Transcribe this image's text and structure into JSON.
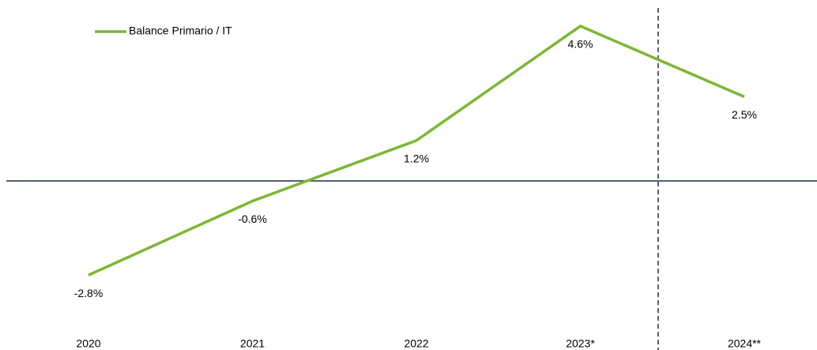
{
  "chart_data": {
    "type": "line",
    "categories": [
      "2020",
      "2021",
      "2022",
      "2023*",
      "2024**"
    ],
    "series": [
      {
        "name": "Balance Primario / IT",
        "color": "#7cb733",
        "values": [
          -2.8,
          -0.6,
          1.2,
          4.6,
          2.5
        ],
        "value_labels": [
          "-2.8%",
          "-0.6%",
          "1.2%",
          "4.6%",
          "2.5%"
        ]
      }
    ],
    "ylim": [
      -3.5,
      5
    ],
    "legend": "top-left"
  }
}
